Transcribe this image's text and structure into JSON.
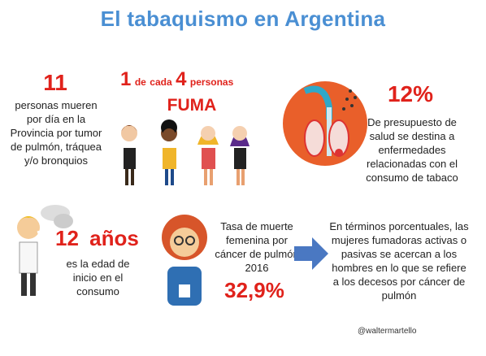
{
  "title": "El tabaquismo en Argentina",
  "stat1": {
    "number": "11",
    "text": "personas mueren por día en la Provincia por tumor de pulmón, tráquea y/o bronquios"
  },
  "stat2": {
    "one": "1",
    "de": "de",
    "cada": "cada",
    "four": "4",
    "personas": "personas",
    "fuma": "FUMA"
  },
  "stat3": {
    "number": "12%",
    "text": "De presupuesto de salud se destina a enfermedades relacionadas con el consumo de tabaco"
  },
  "stat4": {
    "number": "12",
    "unit": "años",
    "text": "es la edad de inicio en el consumo"
  },
  "stat5": {
    "text": "Tasa de muerte femenina por cáncer de pulmón 2016",
    "number": "32,9%"
  },
  "stat6": {
    "text": "En términos porcentuales, las mujeres fumadoras activas o pasivas se acercan a los hombres en lo que se refiere a los decesos por cáncer de pulmón"
  },
  "credit": "@waltermartello",
  "colors": {
    "title": "#4a8fd3",
    "accent": "#e0221b",
    "arrow": "#4a78c2"
  }
}
